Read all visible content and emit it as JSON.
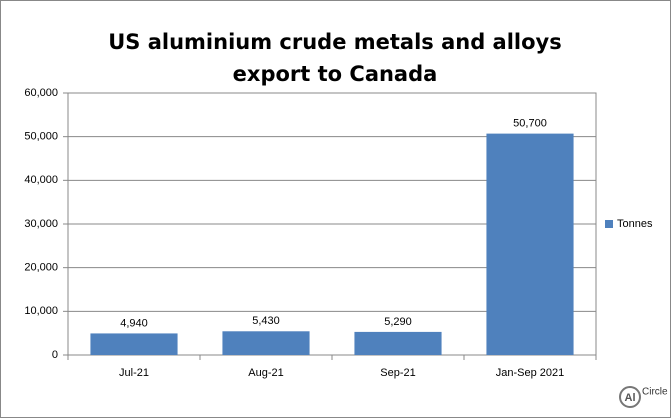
{
  "chart_data": {
    "type": "bar",
    "title": "US aluminium crude metals and alloys export to Canada",
    "categories": [
      "Jul-21",
      "Aug-21",
      "Sep-21",
      "Jan-Sep 2021"
    ],
    "series": [
      {
        "name": "Tonnes",
        "color": "#4f81bd",
        "values": [
          4940,
          5430,
          5290,
          50700
        ],
        "value_labels": [
          "4,940",
          "5,430",
          "5,290",
          "50,700"
        ]
      }
    ],
    "ylim": [
      0,
      60000
    ],
    "yticks": [
      0,
      {
        "value": 10000,
        "label": "10,000"
      },
      {
        "value": 20000,
        "label": "20,000"
      },
      {
        "value": 30000,
        "label": "30,000"
      },
      {
        "value": 40000,
        "label": "40,000"
      },
      {
        "value": 50000,
        "label": "50,000"
      },
      {
        "value": 60000,
        "label": "60,000"
      }
    ],
    "grid": true,
    "legend": "right",
    "logo_mark": "Al",
    "logo_text": "Circle"
  }
}
